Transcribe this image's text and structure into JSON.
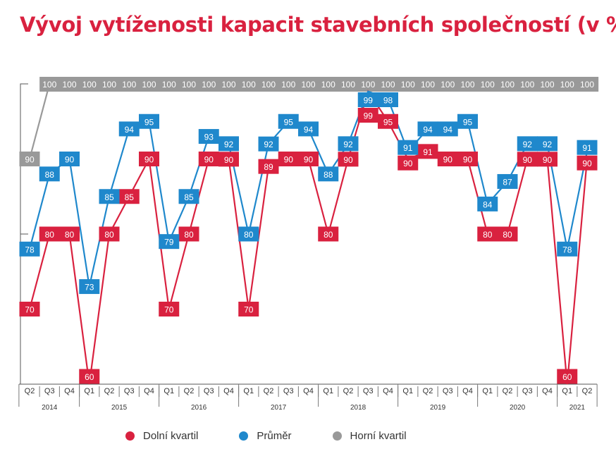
{
  "chart_data": {
    "type": "line",
    "title": "Vývoj vytíženosti kapacit stavebních společností (v %)",
    "quarters": [
      "Q2",
      "Q3",
      "Q4",
      "Q1",
      "Q2",
      "Q3",
      "Q4",
      "Q1",
      "Q2",
      "Q3",
      "Q4",
      "Q1",
      "Q2",
      "Q3",
      "Q4",
      "Q1",
      "Q2",
      "Q3",
      "Q4",
      "Q1",
      "Q2",
      "Q3",
      "Q4",
      "Q1",
      "Q2",
      "Q3",
      "Q4",
      "Q1",
      "Q2"
    ],
    "years": [
      {
        "label": "2014",
        "count": 3
      },
      {
        "label": "2015",
        "count": 4
      },
      {
        "label": "2016",
        "count": 4
      },
      {
        "label": "2017",
        "count": 4
      },
      {
        "label": "2018",
        "count": 4
      },
      {
        "label": "2019",
        "count": 4
      },
      {
        "label": "2020",
        "count": 4
      },
      {
        "label": "2021",
        "count": 2
      }
    ],
    "ylim": [
      60,
      100
    ],
    "grid": false,
    "legend_position": "bottom",
    "series": [
      {
        "name": "Dolní kvartil",
        "color": "#d9213f",
        "values": [
          70,
          80,
          80,
          60,
          80,
          85,
          90,
          70,
          80,
          90,
          90,
          70,
          89,
          90,
          90,
          80,
          90,
          99,
          95,
          90,
          91,
          90,
          90,
          80,
          80,
          90,
          90,
          60,
          90
        ]
      },
      {
        "name": "Průměr",
        "color": "#1f88cc",
        "values": [
          78,
          88,
          90,
          73,
          85,
          94,
          95,
          79,
          85,
          93,
          92,
          80,
          92,
          95,
          94,
          88,
          92,
          99,
          98,
          91,
          94,
          94,
          95,
          84,
          87,
          92,
          92,
          78,
          91
        ]
      },
      {
        "name": "Horní kvartil",
        "color": "#999999",
        "values": [
          90,
          100,
          100,
          100,
          100,
          100,
          100,
          100,
          100,
          100,
          100,
          100,
          100,
          100,
          100,
          100,
          100,
          100,
          100,
          100,
          100,
          100,
          100,
          100,
          100,
          100,
          100,
          100,
          100
        ]
      }
    ]
  }
}
